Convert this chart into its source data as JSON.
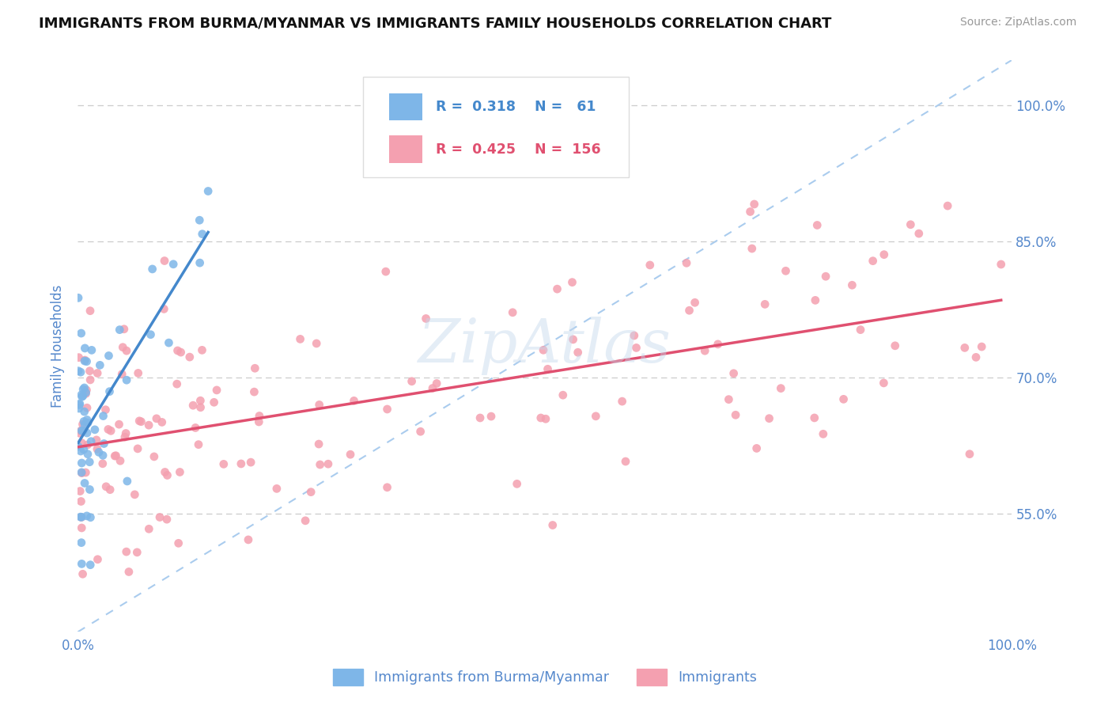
{
  "title": "IMMIGRANTS FROM BURMA/MYANMAR VS IMMIGRANTS FAMILY HOUSEHOLDS CORRELATION CHART",
  "source": "Source: ZipAtlas.com",
  "ylabel": "Family Households",
  "watermark": "ZipAtlas",
  "blue_label": "Immigrants from Burma/Myanmar",
  "pink_label": "Immigrants",
  "blue_R": 0.318,
  "blue_N": 61,
  "pink_R": 0.425,
  "pink_N": 156,
  "xlim": [
    0.0,
    1.0
  ],
  "ylim": [
    0.42,
    1.05
  ],
  "yticks": [
    0.55,
    0.7,
    0.85,
    1.0
  ],
  "ytick_labels": [
    "55.0%",
    "70.0%",
    "85.0%",
    "100.0%"
  ],
  "xtick_vals": [
    0.0,
    1.0
  ],
  "xtick_labels": [
    "0.0%",
    "100.0%"
  ],
  "blue_color": "#7EB6E8",
  "pink_color": "#F4A0B0",
  "blue_line_color": "#4488CC",
  "pink_line_color": "#E05070",
  "diag_color": "#AACCEE",
  "grid_color": "#CCCCCC",
  "axis_label_color": "#5588CC",
  "tick_label_color": "#5588CC",
  "background_color": "#FFFFFF"
}
